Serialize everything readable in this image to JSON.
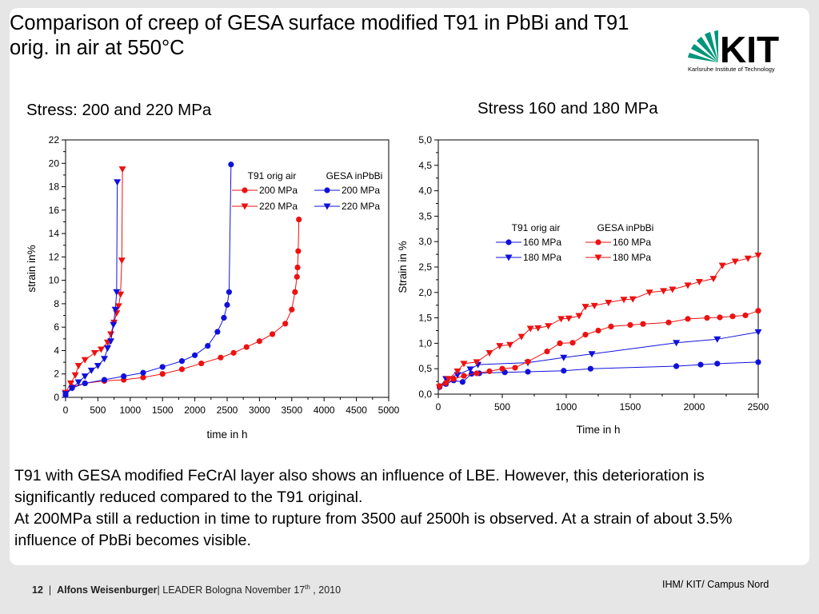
{
  "slide": {
    "title": "Comparison of creep of GESA surface modified T91 in PbBi and T91 orig. in air at  550°C",
    "logo": {
      "text": "KIT",
      "subtitle": "Karlsruhe Institute of Technology"
    },
    "left_heading": "Stress: 200 and 220 MPa",
    "right_heading": "Stress 160 and 180 MPa",
    "body": [
      "T91 with GESA modified FeCrAl layer also shows an influence of LBE. However, this deterioration is significantly reduced compared to the T91 original.",
      "At 200MPa still a reduction in time to rupture from 3500 auf 2500h is observed. At a strain of about 3.5% influence of PbBi becomes visible."
    ],
    "footer": {
      "page": "12",
      "author": "Alfons Weisenburger",
      "event_prefix": "| LEADER Bologna November 17",
      "event_sup": "th",
      "event_suffix": " , 2010",
      "right": "IHM/ KIT/ Campus Nord"
    }
  },
  "colors": {
    "red": "#ee1111",
    "blue": "#1010dd",
    "kit_green": "#00967a"
  },
  "chart_data": [
    {
      "type": "line",
      "xlabel": "time in h",
      "ylabel": "strain in%",
      "xlim": [
        0,
        5000
      ],
      "ylim": [
        0,
        22
      ],
      "xticks": [
        0,
        500,
        1000,
        1500,
        2000,
        2500,
        3000,
        3500,
        4000,
        4500,
        5000
      ],
      "yticks": [
        0,
        2,
        4,
        6,
        8,
        10,
        12,
        14,
        16,
        18,
        20,
        22
      ],
      "legend_headers": [
        "T91 orig air",
        "GESA inPbBi"
      ],
      "legend_placement": "top-right",
      "series": [
        {
          "name": "200 MPa",
          "group": "T91 orig air",
          "color": "red",
          "marker": "circle",
          "points": [
            [
              0,
              0.3
            ],
            [
              100,
              0.9
            ],
            [
              300,
              1.2
            ],
            [
              600,
              1.4
            ],
            [
              900,
              1.5
            ],
            [
              1200,
              1.7
            ],
            [
              1500,
              2.0
            ],
            [
              1800,
              2.4
            ],
            [
              2100,
              2.9
            ],
            [
              2400,
              3.4
            ],
            [
              2600,
              3.8
            ],
            [
              2800,
              4.3
            ],
            [
              3000,
              4.8
            ],
            [
              3200,
              5.4
            ],
            [
              3400,
              6.3
            ],
            [
              3500,
              7.5
            ],
            [
              3550,
              9.0
            ],
            [
              3580,
              10.3
            ],
            [
              3590,
              11.1
            ],
            [
              3600,
              12.5
            ],
            [
              3610,
              15.2
            ]
          ]
        },
        {
          "name": "220 MPa",
          "group": "T91 orig air",
          "color": "red",
          "marker": "triangle",
          "points": [
            [
              0,
              0.4
            ],
            [
              80,
              1.2
            ],
            [
              150,
              1.9
            ],
            [
              200,
              2.7
            ],
            [
              300,
              3.2
            ],
            [
              450,
              3.8
            ],
            [
              550,
              4.1
            ],
            [
              650,
              4.7
            ],
            [
              700,
              5.4
            ],
            [
              750,
              6.4
            ],
            [
              790,
              7.2
            ],
            [
              820,
              7.8
            ],
            [
              850,
              8.8
            ],
            [
              870,
              11.7
            ],
            [
              880,
              19.5
            ]
          ]
        },
        {
          "name": "200 MPa",
          "group": "GESA inPbBi",
          "color": "blue",
          "marker": "circle",
          "points": [
            [
              0,
              0.2
            ],
            [
              100,
              0.8
            ],
            [
              300,
              1.2
            ],
            [
              600,
              1.5
            ],
            [
              900,
              1.8
            ],
            [
              1200,
              2.1
            ],
            [
              1500,
              2.6
            ],
            [
              1800,
              3.1
            ],
            [
              2000,
              3.6
            ],
            [
              2200,
              4.4
            ],
            [
              2350,
              5.6
            ],
            [
              2450,
              6.8
            ],
            [
              2500,
              7.9
            ],
            [
              2530,
              9.0
            ],
            [
              2560,
              19.9
            ]
          ]
        },
        {
          "name": "220 MPa",
          "group": "GESA inPbBi",
          "color": "blue",
          "marker": "triangle",
          "points": [
            [
              0,
              0.3
            ],
            [
              100,
              0.8
            ],
            [
              200,
              1.3
            ],
            [
              300,
              1.8
            ],
            [
              400,
              2.3
            ],
            [
              500,
              2.7
            ],
            [
              600,
              3.3
            ],
            [
              650,
              4.2
            ],
            [
              700,
              4.8
            ],
            [
              740,
              6.2
            ],
            [
              770,
              7.5
            ],
            [
              790,
              9.0
            ],
            [
              800,
              18.4
            ]
          ]
        }
      ]
    },
    {
      "type": "line",
      "xlabel": "Time in h",
      "ylabel": "Strain in %",
      "xlim": [
        0,
        2500
      ],
      "ylim": [
        0,
        5
      ],
      "xticks": [
        0,
        500,
        1000,
        1500,
        2000,
        2500
      ],
      "yticks": [
        "0,0",
        "0,5",
        "1,0",
        "1,5",
        "2,0",
        "2,5",
        "3,0",
        "3,5",
        "4,0",
        "4,5",
        "5,0"
      ],
      "legend_headers": [
        "T91 orig air",
        "GESA inPbBi"
      ],
      "legend_placement": "middle-left",
      "series": [
        {
          "name": "160 MPa",
          "group": "T91 orig air",
          "color": "blue",
          "marker": "circle",
          "points": [
            [
              10,
              0.14
            ],
            [
              60,
              0.2
            ],
            [
              120,
              0.27
            ],
            [
              190,
              0.24
            ],
            [
              260,
              0.4
            ],
            [
              320,
              0.41
            ],
            [
              520,
              0.43
            ],
            [
              700,
              0.44
            ],
            [
              980,
              0.46
            ],
            [
              1190,
              0.5
            ],
            [
              1860,
              0.55
            ],
            [
              2050,
              0.58
            ],
            [
              2180,
              0.6
            ],
            [
              2500,
              0.63
            ]
          ]
        },
        {
          "name": "180 MPa",
          "group": "T91 orig air",
          "color": "blue",
          "marker": "triangle",
          "points": [
            [
              10,
              0.14
            ],
            [
              60,
              0.3
            ],
            [
              150,
              0.38
            ],
            [
              250,
              0.49
            ],
            [
              310,
              0.58
            ],
            [
              700,
              0.62
            ],
            [
              980,
              0.72
            ],
            [
              1200,
              0.79
            ],
            [
              1860,
              1.01
            ],
            [
              2180,
              1.08
            ],
            [
              2500,
              1.22
            ]
          ]
        },
        {
          "name": "160 MPa",
          "group": "GESA inPbBi",
          "color": "red",
          "marker": "circle",
          "points": [
            [
              10,
              0.16
            ],
            [
              60,
              0.22
            ],
            [
              120,
              0.3
            ],
            [
              200,
              0.36
            ],
            [
              300,
              0.41
            ],
            [
              400,
              0.45
            ],
            [
              500,
              0.5
            ],
            [
              600,
              0.52
            ],
            [
              700,
              0.64
            ],
            [
              850,
              0.84
            ],
            [
              950,
              1.0
            ],
            [
              1050,
              1.01
            ],
            [
              1150,
              1.17
            ],
            [
              1250,
              1.25
            ],
            [
              1350,
              1.33
            ],
            [
              1500,
              1.36
            ],
            [
              1600,
              1.38
            ],
            [
              1800,
              1.41
            ],
            [
              1950,
              1.48
            ],
            [
              2100,
              1.5
            ],
            [
              2200,
              1.51
            ],
            [
              2300,
              1.53
            ],
            [
              2400,
              1.55
            ],
            [
              2500,
              1.64
            ]
          ]
        },
        {
          "name": "180 MPa",
          "group": "GESA inPbBi",
          "color": "red",
          "marker": "triangle",
          "points": [
            [
              10,
              0.14
            ],
            [
              80,
              0.3
            ],
            [
              150,
              0.45
            ],
            [
              200,
              0.6
            ],
            [
              300,
              0.63
            ],
            [
              400,
              0.81
            ],
            [
              480,
              0.95
            ],
            [
              560,
              0.97
            ],
            [
              650,
              1.13
            ],
            [
              720,
              1.29
            ],
            [
              780,
              1.3
            ],
            [
              860,
              1.34
            ],
            [
              960,
              1.48
            ],
            [
              1020,
              1.49
            ],
            [
              1100,
              1.54
            ],
            [
              1150,
              1.72
            ],
            [
              1220,
              1.74
            ],
            [
              1330,
              1.8
            ],
            [
              1450,
              1.86
            ],
            [
              1520,
              1.87
            ],
            [
              1650,
              2.0
            ],
            [
              1760,
              2.03
            ],
            [
              1830,
              2.06
            ],
            [
              1950,
              2.14
            ],
            [
              2040,
              2.21
            ],
            [
              2150,
              2.27
            ],
            [
              2220,
              2.53
            ],
            [
              2320,
              2.61
            ],
            [
              2420,
              2.67
            ],
            [
              2500,
              2.73
            ]
          ]
        }
      ]
    }
  ]
}
